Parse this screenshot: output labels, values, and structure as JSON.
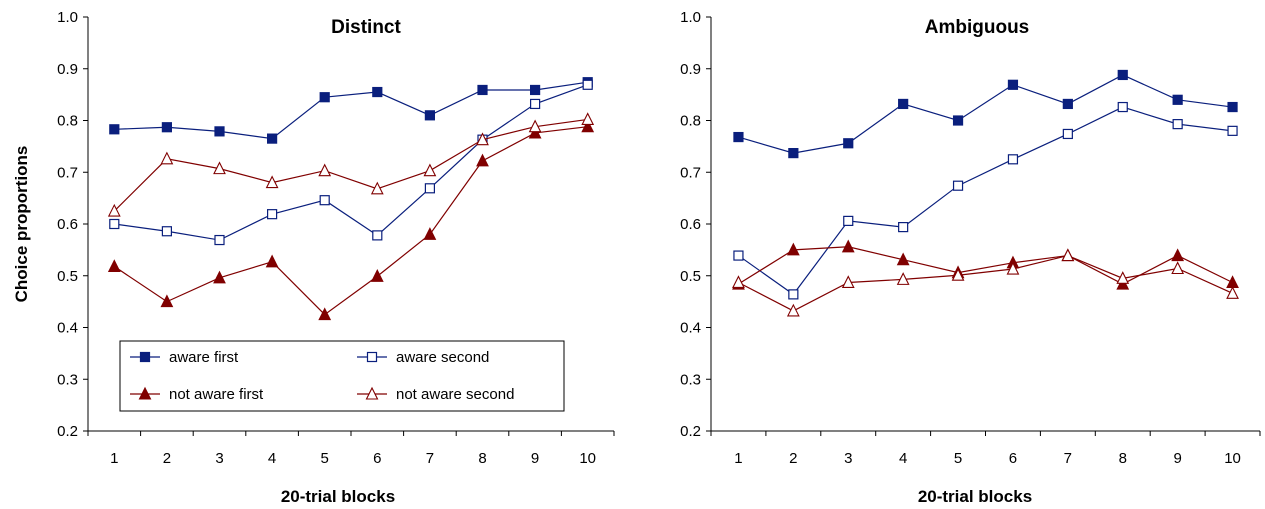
{
  "chart_data": [
    {
      "type": "line",
      "title": "Distinct",
      "xlabel": "20-trial blocks",
      "ylabel": "Choice proportions",
      "categories": [
        "1",
        "2",
        "3",
        "4",
        "5",
        "6",
        "7",
        "8",
        "9",
        "10"
      ],
      "ylim": [
        0.2,
        1.0
      ],
      "yticks": [
        "0.2",
        "0.3",
        "0.4",
        "0.5",
        "0.6",
        "0.7",
        "0.8",
        "0.9",
        "1.0"
      ],
      "grid": false,
      "legend_position": "bottom-left",
      "series": [
        {
          "name": "aware first",
          "color": "#0a1f7d",
          "marker": "filled-square",
          "values": [
            0.783,
            0.787,
            0.779,
            0.765,
            0.845,
            0.855,
            0.81,
            0.859,
            0.859,
            0.874
          ]
        },
        {
          "name": "aware second",
          "color": "#0a1f7d",
          "marker": "open-square",
          "values": [
            0.6,
            0.586,
            0.569,
            0.619,
            0.646,
            0.578,
            0.669,
            0.763,
            0.832,
            0.869
          ]
        },
        {
          "name": "not aware first",
          "color": "#800000",
          "marker": "filled-triangle",
          "values": [
            0.518,
            0.45,
            0.496,
            0.527,
            0.425,
            0.499,
            0.58,
            0.722,
            0.776,
            0.788
          ]
        },
        {
          "name": "not aware second",
          "color": "#800000",
          "marker": "open-triangle",
          "values": [
            0.625,
            0.726,
            0.707,
            0.68,
            0.703,
            0.668,
            0.703,
            0.763,
            0.788,
            0.802
          ]
        }
      ]
    },
    {
      "type": "line",
      "title": "Ambiguous",
      "xlabel": "20-trial blocks",
      "ylabel": "",
      "categories": [
        "1",
        "2",
        "3",
        "4",
        "5",
        "6",
        "7",
        "8",
        "9",
        "10"
      ],
      "ylim": [
        0.2,
        1.0
      ],
      "yticks": [
        "0.2",
        "0.3",
        "0.4",
        "0.5",
        "0.6",
        "0.7",
        "0.8",
        "0.9",
        "1.0"
      ],
      "grid": false,
      "series": [
        {
          "name": "aware first",
          "color": "#0a1f7d",
          "marker": "filled-square",
          "values": [
            0.768,
            0.737,
            0.756,
            0.832,
            0.8,
            0.869,
            0.832,
            0.888,
            0.84,
            0.826
          ]
        },
        {
          "name": "aware second",
          "color": "#0a1f7d",
          "marker": "open-square",
          "values": [
            0.539,
            0.464,
            0.606,
            0.594,
            0.674,
            0.725,
            0.774,
            0.826,
            0.793,
            0.78
          ]
        },
        {
          "name": "not aware first",
          "color": "#800000",
          "marker": "filled-triangle",
          "values": [
            0.484,
            0.55,
            0.556,
            0.531,
            0.506,
            0.525,
            0.539,
            0.484,
            0.539,
            0.487
          ]
        },
        {
          "name": "not aware second",
          "color": "#800000",
          "marker": "open-triangle",
          "values": [
            0.487,
            0.432,
            0.487,
            0.493,
            0.501,
            0.513,
            0.539,
            0.495,
            0.514,
            0.466
          ]
        }
      ]
    }
  ]
}
